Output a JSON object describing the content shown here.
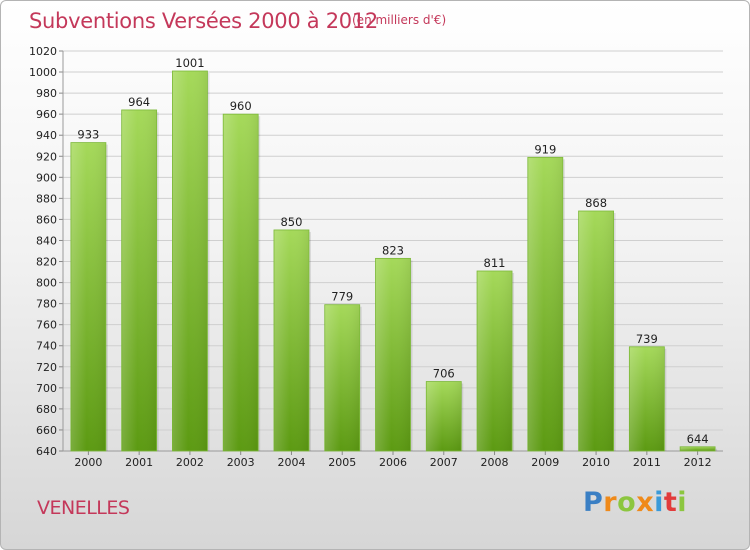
{
  "header": {
    "title": "Subventions Versées 2000 à 2012",
    "unit_note": "(en milliers d'€)"
  },
  "footer": {
    "commune": "VENELLES",
    "logo_text": "Proxiti"
  },
  "colors": {
    "title": "#c4385a",
    "bar_top": "#a5d95a",
    "bar_bottom": "#5c9a12"
  },
  "chart_data": {
    "type": "bar",
    "title": "Subventions Versées 2000 à 2012",
    "subtitle": "(en milliers d'€)",
    "xlabel": "",
    "ylabel": "",
    "categories": [
      "2000",
      "2001",
      "2002",
      "2003",
      "2004",
      "2005",
      "2006",
      "2007",
      "2008",
      "2009",
      "2010",
      "2011",
      "2012"
    ],
    "values": [
      933,
      964,
      1001,
      960,
      850,
      779,
      823,
      706,
      811,
      919,
      868,
      739,
      644
    ],
    "ylim": [
      640,
      1020
    ],
    "yticks": [
      640,
      660,
      680,
      700,
      720,
      740,
      760,
      780,
      800,
      820,
      840,
      860,
      880,
      900,
      920,
      940,
      960,
      980,
      1000,
      1020
    ],
    "grid": true,
    "data_labels": true,
    "legend": "none"
  }
}
